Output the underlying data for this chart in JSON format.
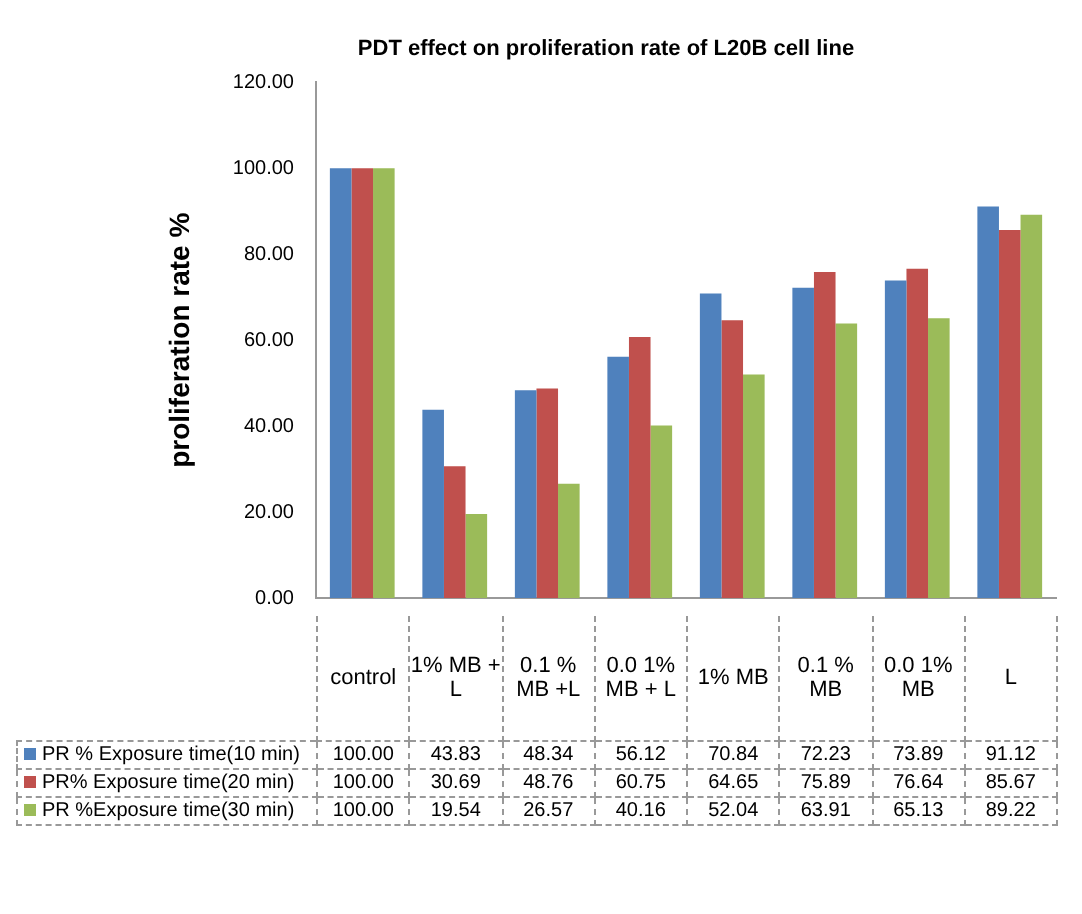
{
  "chart_data": {
    "type": "bar",
    "title": "PDT effect on proliferation rate of L20B cell line",
    "ylabel": "proliferation rate %",
    "categories": [
      "control",
      "1% MB + L",
      "0.1 % MB +L",
      "0.0 1% MB + L",
      "1% MB",
      "0.1 % MB",
      "0.0 1% MB",
      "L"
    ],
    "series": [
      {
        "name": "PR % Exposure time(10 min)",
        "color": "#4f81bd",
        "values": [
          100.0,
          43.83,
          48.34,
          56.12,
          70.84,
          72.23,
          73.89,
          91.12
        ],
        "value_labels": [
          "100.00",
          "43.83",
          "48.34",
          "56.12",
          "70.84",
          "72.23",
          "73.89",
          "91.12"
        ]
      },
      {
        "name": "PR% Exposure time(20 min)",
        "color": "#c0504d",
        "values": [
          100.0,
          30.69,
          48.76,
          60.75,
          64.65,
          75.89,
          76.64,
          85.67
        ],
        "value_labels": [
          "100.00",
          "30.69",
          "48.76",
          "60.75",
          "64.65",
          "75.89",
          "76.64",
          "85.67"
        ]
      },
      {
        "name": "PR %Exposure time(30 min)",
        "color": "#9bbb59",
        "values": [
          100.0,
          19.54,
          26.57,
          40.16,
          52.04,
          63.91,
          65.13,
          89.22
        ],
        "value_labels": [
          "100.00",
          "19.54",
          "26.57",
          "40.16",
          "52.04",
          "63.91",
          "65.13",
          "89.22"
        ]
      }
    ],
    "ylim": [
      0,
      120
    ],
    "yticks": [
      {
        "value": 0,
        "label": "0.00"
      },
      {
        "value": 20,
        "label": "20.00"
      },
      {
        "value": 40,
        "label": "40.00"
      },
      {
        "value": 60,
        "label": "60.00"
      },
      {
        "value": 80,
        "label": "80.00"
      },
      {
        "value": 100,
        "label": "100.00"
      },
      {
        "value": 120,
        "label": "120.00"
      }
    ],
    "grid": false,
    "legend": "bottom left"
  }
}
